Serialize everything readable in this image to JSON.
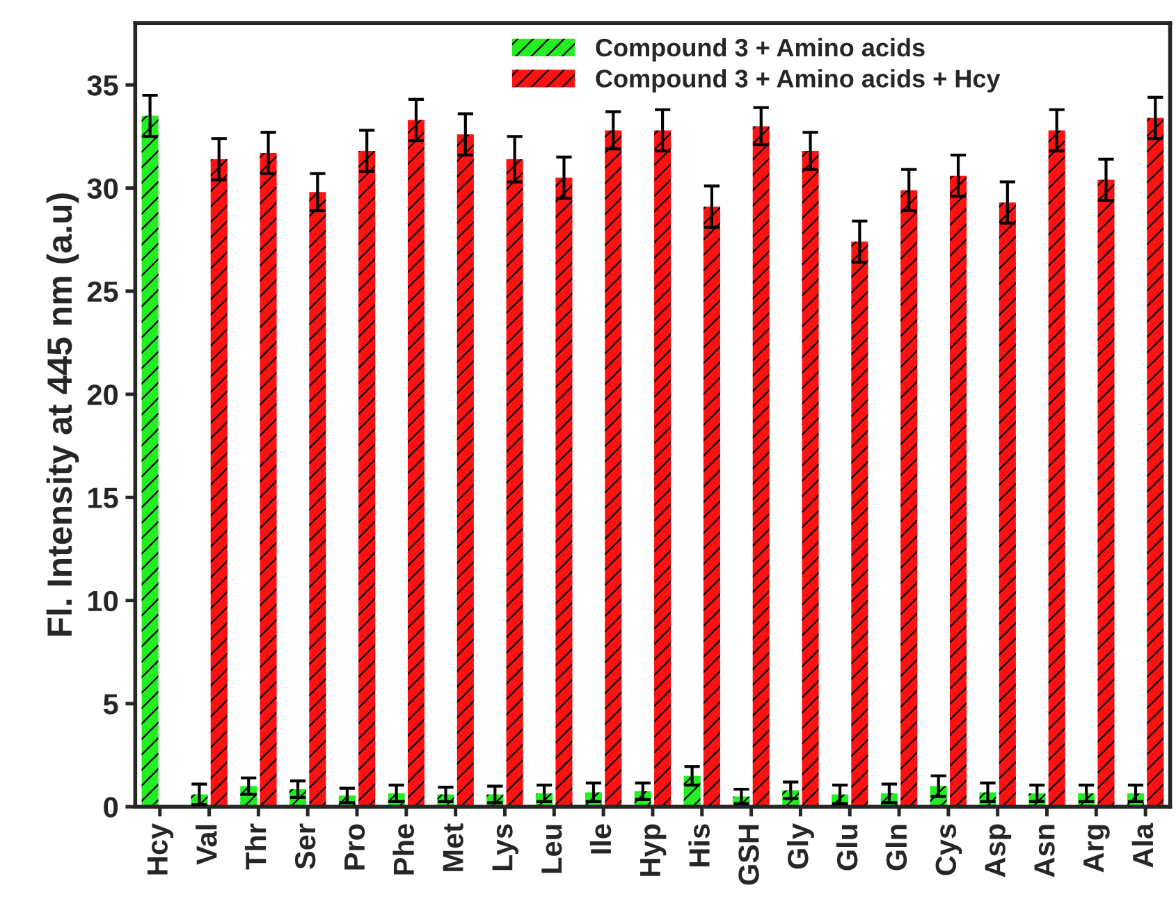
{
  "chart_data": {
    "type": "bar",
    "ylabel": "Fl. Intensity at 445 nm (a.u)",
    "categories": [
      "Hcy",
      "Val",
      "Thr",
      "Ser",
      "Pro",
      "Phe",
      "Met",
      "Lys",
      "Leu",
      "Ile",
      "Hyp",
      "His",
      "GSH",
      "Gly",
      "Glu",
      "Gln",
      "Cys",
      "Asp",
      "Asn",
      "Arg",
      "Ala"
    ],
    "series": [
      {
        "name": "Compound 3 + Amino acids",
        "color": "#22ee22",
        "values": [
          33.5,
          0.6,
          1.0,
          0.85,
          0.55,
          0.65,
          0.6,
          0.6,
          0.65,
          0.7,
          0.75,
          1.5,
          0.5,
          0.8,
          0.6,
          0.65,
          1.0,
          0.7,
          0.65,
          0.65,
          0.65
        ],
        "errors": [
          1.0,
          0.5,
          0.4,
          0.4,
          0.35,
          0.4,
          0.35,
          0.4,
          0.4,
          0.45,
          0.4,
          0.45,
          0.35,
          0.4,
          0.45,
          0.45,
          0.5,
          0.45,
          0.4,
          0.4,
          0.4
        ]
      },
      {
        "name": "Compound 3 + Amino acids + Hcy",
        "color": "#ff1111",
        "values": [
          null,
          31.4,
          31.7,
          29.8,
          31.8,
          33.3,
          32.6,
          31.4,
          30.5,
          32.8,
          32.8,
          29.1,
          33.0,
          31.8,
          27.4,
          29.9,
          30.6,
          29.3,
          32.8,
          30.4,
          33.4
        ],
        "errors": [
          null,
          1.0,
          1.0,
          0.9,
          1.0,
          1.0,
          1.0,
          1.1,
          1.0,
          0.9,
          1.0,
          1.0,
          0.9,
          0.9,
          1.0,
          1.0,
          1.0,
          1.0,
          1.0,
          1.0,
          1.0
        ]
      }
    ],
    "ylim": [
      0,
      38
    ],
    "yticks": [
      0,
      5,
      10,
      15,
      20,
      25,
      30,
      35
    ],
    "legend": "top",
    "grid": false
  }
}
